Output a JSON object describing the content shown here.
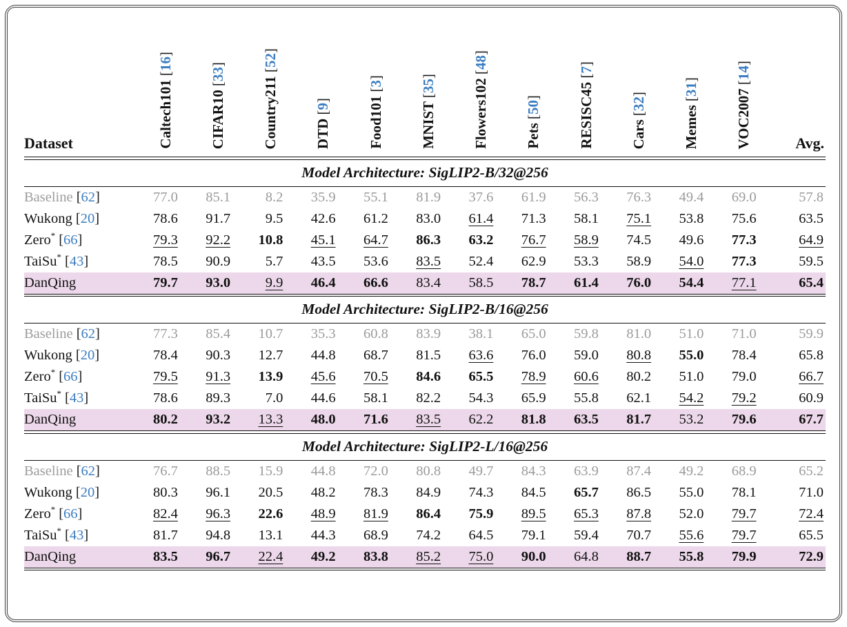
{
  "colors": {
    "citation_blue": "#3b7dc1",
    "highlight_pink": "#ecd8ea",
    "muted_gray": "#9b9b9b",
    "text": "#111111"
  },
  "table": {
    "dataset_label": "Dataset",
    "avg_label": "Avg.",
    "columns": [
      {
        "name": "Caltech101",
        "cite": "16"
      },
      {
        "name": "CIFAR10",
        "cite": "33"
      },
      {
        "name": "Country211",
        "cite": "52"
      },
      {
        "name": "DTD",
        "cite": "9"
      },
      {
        "name": "Food101",
        "cite": "3"
      },
      {
        "name": "MNIST",
        "cite": "35"
      },
      {
        "name": "Flowers102",
        "cite": "48"
      },
      {
        "name": "Pets",
        "cite": "50"
      },
      {
        "name": "RESISC45",
        "cite": "7"
      },
      {
        "name": "Cars",
        "cite": "32"
      },
      {
        "name": "Memes",
        "cite": "31"
      },
      {
        "name": "VOC2007",
        "cite": "14"
      }
    ],
    "sections": [
      {
        "title": "Model Architecture: SigLIP2-B/32@256",
        "rows": [
          {
            "label": "Baseline",
            "sup": "",
            "cite": "62",
            "muted": true,
            "highlight": false,
            "values": [
              "77.0",
              "85.1",
              "8.2",
              "35.9",
              "55.1",
              "81.9",
              "37.6",
              "61.9",
              "56.3",
              "76.3",
              "49.4",
              "69.0",
              "57.8"
            ],
            "bold": [],
            "underline": []
          },
          {
            "label": "Wukong",
            "sup": "",
            "cite": "20",
            "muted": false,
            "highlight": false,
            "values": [
              "78.6",
              "91.7",
              "9.5",
              "42.6",
              "61.2",
              "83.0",
              "61.4",
              "71.3",
              "58.1",
              "75.1",
              "53.8",
              "75.6",
              "63.5"
            ],
            "bold": [],
            "underline": [
              6,
              9
            ]
          },
          {
            "label": "Zero",
            "sup": "*",
            "cite": "66",
            "muted": false,
            "highlight": false,
            "values": [
              "79.3",
              "92.2",
              "10.8",
              "45.1",
              "64.7",
              "86.3",
              "63.2",
              "76.7",
              "58.9",
              "74.5",
              "49.6",
              "77.3",
              "64.9"
            ],
            "bold": [
              2,
              5,
              6,
              11
            ],
            "underline": [
              0,
              1,
              3,
              4,
              7,
              8,
              12
            ]
          },
          {
            "label": "TaiSu",
            "sup": "*",
            "cite": "43",
            "muted": false,
            "highlight": false,
            "values": [
              "78.5",
              "90.9",
              "5.7",
              "43.5",
              "53.6",
              "83.5",
              "52.4",
              "62.9",
              "53.3",
              "58.9",
              "54.0",
              "77.3",
              "59.5"
            ],
            "bold": [
              11
            ],
            "underline": [
              5,
              10
            ]
          },
          {
            "label": "DanQing",
            "sup": "",
            "cite": "",
            "muted": false,
            "highlight": true,
            "values": [
              "79.7",
              "93.0",
              "9.9",
              "46.4",
              "66.6",
              "83.4",
              "58.5",
              "78.7",
              "61.4",
              "76.0",
              "54.4",
              "77.1",
              "65.4"
            ],
            "bold": [
              0,
              1,
              3,
              4,
              7,
              8,
              9,
              10,
              12
            ],
            "underline": [
              2,
              11
            ]
          }
        ]
      },
      {
        "title": "Model Architecture: SigLIP2-B/16@256",
        "rows": [
          {
            "label": "Baseline",
            "sup": "",
            "cite": "62",
            "muted": true,
            "highlight": false,
            "values": [
              "77.3",
              "85.4",
              "10.7",
              "35.3",
              "60.8",
              "83.9",
              "38.1",
              "65.0",
              "59.8",
              "81.0",
              "51.0",
              "71.0",
              "59.9"
            ],
            "bold": [],
            "underline": []
          },
          {
            "label": "Wukong",
            "sup": "",
            "cite": "20",
            "muted": false,
            "highlight": false,
            "values": [
              "78.4",
              "90.3",
              "12.7",
              "44.8",
              "68.7",
              "81.5",
              "63.6",
              "76.0",
              "59.0",
              "80.8",
              "55.0",
              "78.4",
              "65.8"
            ],
            "bold": [
              10
            ],
            "underline": [
              6,
              9
            ]
          },
          {
            "label": "Zero",
            "sup": "*",
            "cite": "66",
            "muted": false,
            "highlight": false,
            "values": [
              "79.5",
              "91.3",
              "13.9",
              "45.6",
              "70.5",
              "84.6",
              "65.5",
              "78.9",
              "60.6",
              "80.2",
              "51.0",
              "79.0",
              "66.7"
            ],
            "bold": [
              2,
              5,
              6
            ],
            "underline": [
              0,
              1,
              3,
              4,
              7,
              8,
              12
            ]
          },
          {
            "label": "TaiSu",
            "sup": "*",
            "cite": "43",
            "muted": false,
            "highlight": false,
            "values": [
              "78.6",
              "89.3",
              "7.0",
              "44.6",
              "58.1",
              "82.2",
              "54.3",
              "65.9",
              "55.8",
              "62.1",
              "54.2",
              "79.2",
              "60.9"
            ],
            "bold": [],
            "underline": [
              10,
              11
            ]
          },
          {
            "label": "DanQing",
            "sup": "",
            "cite": "",
            "muted": false,
            "highlight": true,
            "values": [
              "80.2",
              "93.2",
              "13.3",
              "48.0",
              "71.6",
              "83.5",
              "62.2",
              "81.8",
              "63.5",
              "81.7",
              "53.2",
              "79.6",
              "67.7"
            ],
            "bold": [
              0,
              1,
              3,
              4,
              7,
              8,
              9,
              11,
              12
            ],
            "underline": [
              2,
              5
            ]
          }
        ]
      },
      {
        "title": "Model Architecture: SigLIP2-L/16@256",
        "rows": [
          {
            "label": "Baseline",
            "sup": "",
            "cite": "62",
            "muted": true,
            "highlight": false,
            "values": [
              "76.7",
              "88.5",
              "15.9",
              "44.8",
              "72.0",
              "80.8",
              "49.7",
              "84.3",
              "63.9",
              "87.4",
              "49.2",
              "68.9",
              "65.2"
            ],
            "bold": [],
            "underline": []
          },
          {
            "label": "Wukong",
            "sup": "",
            "cite": "20",
            "muted": false,
            "highlight": false,
            "values": [
              "80.3",
              "96.1",
              "20.5",
              "48.2",
              "78.3",
              "84.9",
              "74.3",
              "84.5",
              "65.7",
              "86.5",
              "55.0",
              "78.1",
              "71.0"
            ],
            "bold": [
              8
            ],
            "underline": []
          },
          {
            "label": "Zero",
            "sup": "*",
            "cite": "66",
            "muted": false,
            "highlight": false,
            "values": [
              "82.4",
              "96.3",
              "22.6",
              "48.9",
              "81.9",
              "86.4",
              "75.9",
              "89.5",
              "65.3",
              "87.8",
              "52.0",
              "79.7",
              "72.4"
            ],
            "bold": [
              2,
              5,
              6
            ],
            "underline": [
              0,
              1,
              3,
              4,
              7,
              8,
              9,
              11,
              12
            ]
          },
          {
            "label": "TaiSu",
            "sup": "*",
            "cite": "43",
            "muted": false,
            "highlight": false,
            "values": [
              "81.7",
              "94.8",
              "13.1",
              "44.3",
              "68.9",
              "74.2",
              "64.5",
              "79.1",
              "59.4",
              "70.7",
              "55.6",
              "79.7",
              "65.5"
            ],
            "bold": [],
            "underline": [
              10,
              11
            ]
          },
          {
            "label": "DanQing",
            "sup": "",
            "cite": "",
            "muted": false,
            "highlight": true,
            "values": [
              "83.5",
              "96.7",
              "22.4",
              "49.2",
              "83.8",
              "85.2",
              "75.0",
              "90.0",
              "64.8",
              "88.7",
              "55.8",
              "79.9",
              "72.9"
            ],
            "bold": [
              0,
              1,
              3,
              4,
              7,
              9,
              10,
              11,
              12
            ],
            "underline": [
              2,
              5,
              6
            ]
          }
        ]
      }
    ]
  }
}
